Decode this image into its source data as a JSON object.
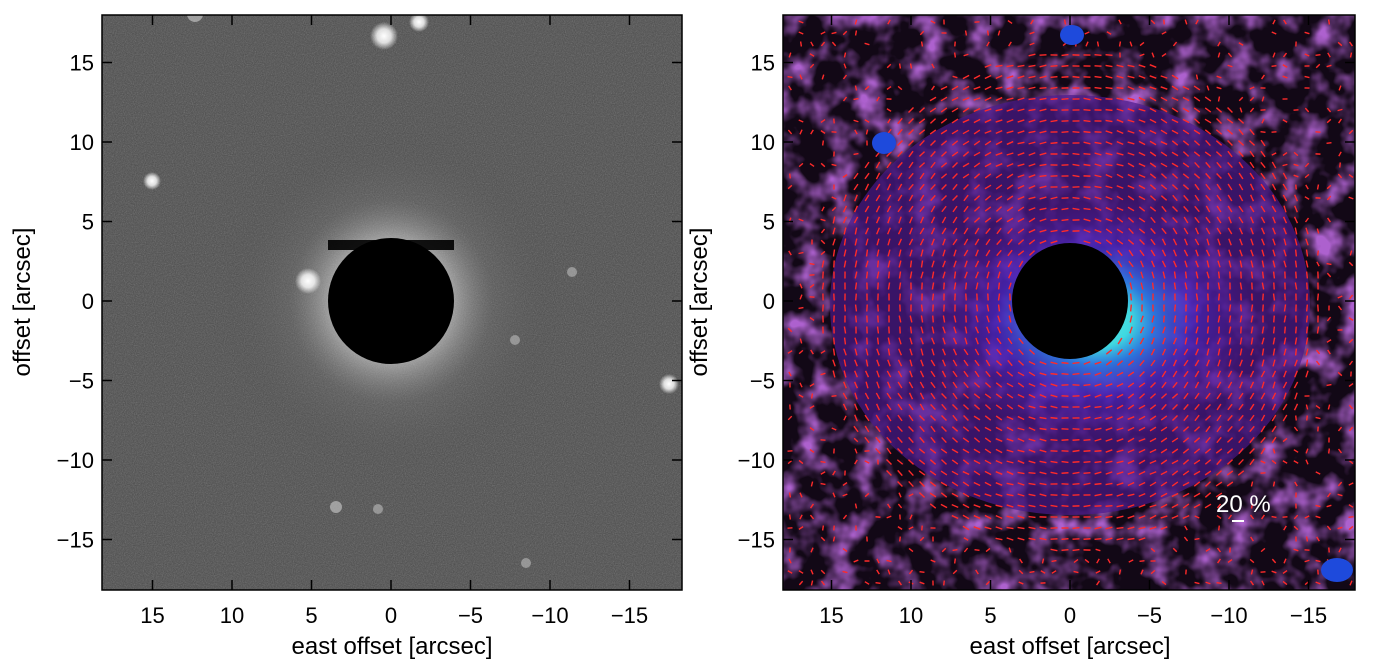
{
  "figure": {
    "panels": [
      {
        "id": "left",
        "description_type": "grayscale coronagraphic image",
        "xlabel": "east offset [arcsec]",
        "ylabel": "offset [arcsec]",
        "x_ticks": [
          "15",
          "10",
          "5",
          "0",
          "−5",
          "−10",
          "−15"
        ],
        "y_ticks": [
          "15",
          "10",
          "5",
          "0",
          "−5",
          "−10",
          "−15"
        ],
        "colors": {
          "background": "#4a4a4a",
          "mask": "#000000"
        }
      },
      {
        "id": "right",
        "description_type": "polarization color map with vectors",
        "xlabel": "east offset [arcsec]",
        "ylabel": "offset [arcsec]",
        "x_ticks": [
          "15",
          "10",
          "5",
          "0",
          "−5",
          "−10",
          "−15"
        ],
        "y_ticks": [
          "15",
          "10",
          "5",
          "0",
          "−5",
          "−10",
          "−15"
        ],
        "scale_label": "20 %",
        "colors": {
          "background": "#120816",
          "nebula": "#6a1f9e",
          "inner": "#3fd8e0",
          "vectors": "#ff2a2a",
          "mask": "#000000"
        }
      }
    ]
  }
}
